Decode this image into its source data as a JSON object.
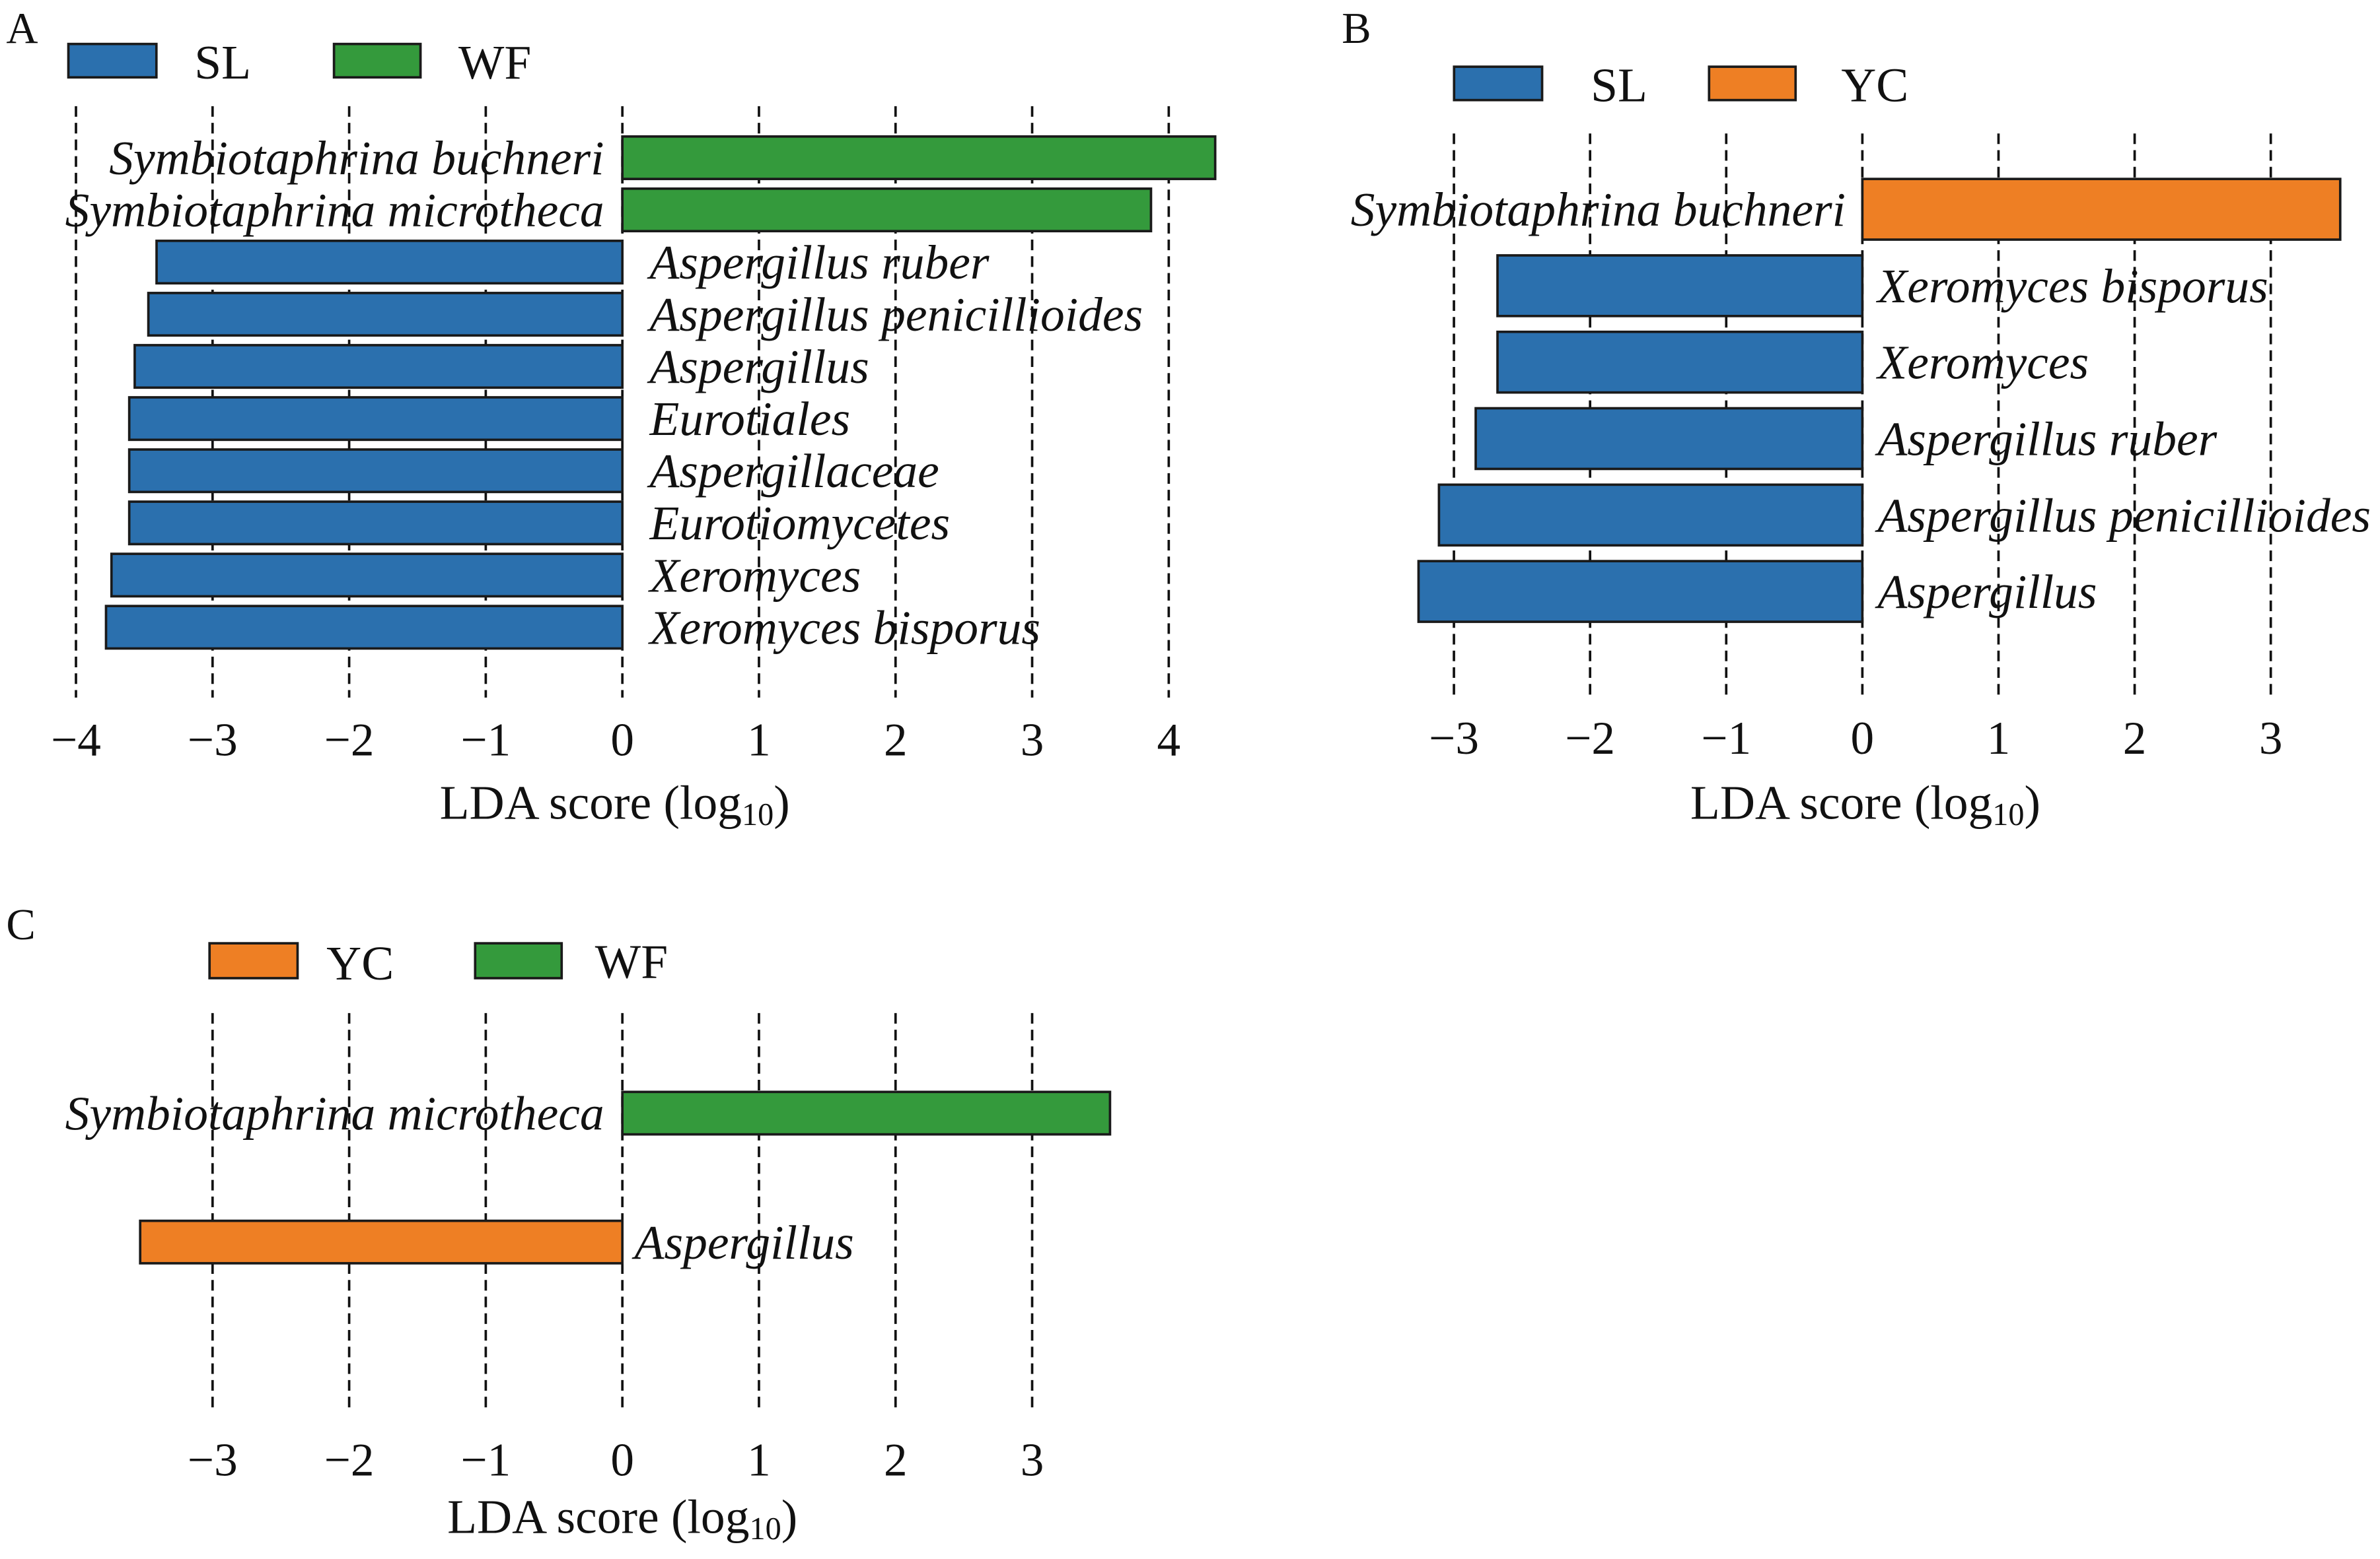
{
  "chart_data": [
    {
      "panel_label": "A",
      "type": "bar",
      "orientation": "horizontal",
      "categories": [
        "Symbiotaphrina buchneri",
        "Symbiotaphrina microtheca",
        "Aspergillus ruber",
        "Aspergillus penicillioides",
        "Aspergillus",
        "Eurotiales",
        "Aspergillaceae",
        "Eurotiomycetes",
        "Xeromyces",
        "Xeromyces bisporus"
      ],
      "series": [
        {
          "name": "SL",
          "color": "#2b70ae",
          "values": [
            null,
            null,
            -3.41,
            -3.47,
            -3.57,
            -3.61,
            -3.61,
            -3.61,
            -3.74,
            -3.78
          ]
        },
        {
          "name": "WF",
          "color": "#349a3c",
          "values": [
            4.34,
            3.87,
            null,
            null,
            null,
            null,
            null,
            null,
            null,
            null
          ]
        }
      ],
      "xticks": [
        -4,
        -3,
        -2,
        -1,
        0,
        1,
        2,
        3,
        4
      ],
      "xtick_labels": [
        "−4",
        "−3",
        "−2",
        "−1",
        "0",
        "1",
        "2",
        "3",
        "4"
      ],
      "xlim": [
        -4,
        4.4
      ],
      "xlabel": {
        "prefix": "LDA score (log",
        "subscript": "10",
        "suffix": ")"
      },
      "grid": true,
      "legend_placement": "top-left"
    },
    {
      "panel_label": "B",
      "type": "bar",
      "orientation": "horizontal",
      "categories": [
        "Symbiotaphrina buchneri",
        "Xeromyces bisporus",
        "Xeromyces",
        "Aspergillus ruber",
        "Aspergillus penicillioides",
        "Aspergillus"
      ],
      "series": [
        {
          "name": "SL",
          "color": "#2b70ae",
          "values": [
            null,
            -2.68,
            -2.68,
            -2.84,
            -3.11,
            -3.26
          ]
        },
        {
          "name": "YC",
          "color": "#ee7f24",
          "values": [
            3.51,
            null,
            null,
            null,
            null,
            null
          ]
        }
      ],
      "xticks": [
        -3,
        -2,
        -1,
        0,
        1,
        2,
        3
      ],
      "xtick_labels": [
        "−3",
        "−2",
        "−1",
        "0",
        "1",
        "2",
        "3"
      ],
      "xlim": [
        -3.3,
        3.6
      ],
      "xlabel": {
        "prefix": "LDA score (log",
        "subscript": "10",
        "suffix": ")"
      },
      "grid": true,
      "legend_placement": "top-left"
    },
    {
      "panel_label": "C",
      "type": "bar",
      "orientation": "horizontal",
      "categories": [
        "Symbiotaphrina microtheca",
        "Aspergillus"
      ],
      "series": [
        {
          "name": "YC",
          "color": "#ee7f24",
          "values": [
            null,
            -3.53
          ]
        },
        {
          "name": "WF",
          "color": "#349a3c",
          "values": [
            3.57,
            null
          ]
        }
      ],
      "xticks": [
        -3,
        -2,
        -1,
        0,
        1,
        2,
        3
      ],
      "xtick_labels": [
        "−3",
        "−2",
        "−1",
        "0",
        "1",
        "2",
        "3"
      ],
      "xlim": [
        -3.6,
        3.6
      ],
      "xlabel": {
        "prefix": "LDA score (log",
        "subscript": "10",
        "suffix": ")"
      },
      "grid": true,
      "legend_placement": "top-left"
    }
  ]
}
